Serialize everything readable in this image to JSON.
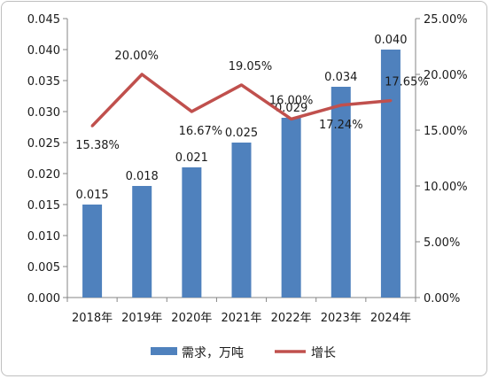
{
  "chart_data": {
    "type": "bar",
    "categories": [
      "2018年",
      "2019年",
      "2020年",
      "2021年",
      "2022年",
      "2023年",
      "2024年"
    ],
    "series": [
      {
        "name": "需求，万吨",
        "type": "bar",
        "axis": "left",
        "values": [
          0.015,
          0.018,
          0.021,
          0.025,
          0.029,
          0.034,
          0.04
        ],
        "labels": [
          "0.015",
          "0.018",
          "0.021",
          "0.025",
          "0.029",
          "0.034",
          "0.040"
        ],
        "color": "#4f81bd"
      },
      {
        "name": "增长",
        "type": "line",
        "axis": "right",
        "values": [
          15.38,
          20.0,
          16.67,
          19.05,
          16.0,
          17.24,
          17.65
        ],
        "labels": [
          "15.38%",
          "20.00%",
          "16.67%",
          "19.05%",
          "16.00%",
          "17.24%",
          "17.65%"
        ],
        "color": "#c0504d"
      }
    ],
    "y_left": {
      "lim": [
        0,
        0.045
      ],
      "ticks": [
        "0.000",
        "0.005",
        "0.010",
        "0.015",
        "0.020",
        "0.025",
        "0.030",
        "0.035",
        "0.040",
        "0.045"
      ]
    },
    "y_right": {
      "lim": [
        0,
        25
      ],
      "ticks": [
        "0.00%",
        "5.00%",
        "10.00%",
        "15.00%",
        "20.00%",
        "25.00%"
      ]
    },
    "grid": false,
    "legend_position": "bottom"
  }
}
